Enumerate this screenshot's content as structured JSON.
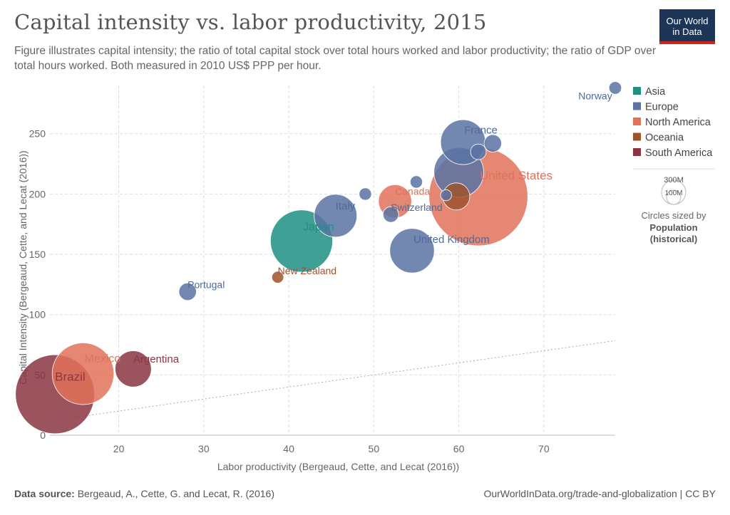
{
  "header": {
    "title": "Capital intensity vs. labor productivity, 2015",
    "subtitle": "Figure illustrates capital intensity; the ratio of total capital stock over total hours worked and labor productivity; the ratio of GDP over total hours worked. Both measured in 2010 US$ PPP per hour.",
    "logo_line1": "Our World",
    "logo_line2": "in Data"
  },
  "footer": {
    "source_label": "Data source:",
    "source_text": "Bergeaud, A., Cette, G. and Lecat, R. (2016)",
    "right_text": "OurWorldInData.org/trade-and-globalization | CC BY"
  },
  "legend": {
    "size_top": "300M",
    "size_bottom": "100M",
    "size_caption1": "Circles sized by",
    "size_caption2": "Population",
    "size_caption3": "(historical)"
  },
  "chart_data": {
    "type": "scatter",
    "xlabel": "Labor productivity (Bergeaud, Cette, and Lecat (2016))",
    "ylabel": "Capital Intensity (Bergeaud, Cette, and Lecat (2016))",
    "xlim": [
      11.9,
      78.4
    ],
    "ylim": [
      0,
      290
    ],
    "xticks": [
      20,
      30,
      40,
      50,
      60,
      70
    ],
    "yticks": [
      0,
      50,
      100,
      150,
      200,
      250
    ],
    "grid": true,
    "legend_position": "right",
    "groups": [
      {
        "name": "Asia",
        "color": "#1f8f84"
      },
      {
        "name": "Europe",
        "color": "#5a73a3"
      },
      {
        "name": "North America",
        "color": "#e0725a"
      },
      {
        "name": "Oceania",
        "color": "#9e532c"
      },
      {
        "name": "South America",
        "color": "#8a3542"
      }
    ],
    "points": [
      {
        "label": "Norway",
        "x": 78.4,
        "y": 288,
        "group": "Europe",
        "pop": 5.2
      },
      {
        "label": "France",
        "x": 60.5,
        "y": 243,
        "group": "Europe",
        "pop": 66
      },
      {
        "label": "",
        "x": 64.0,
        "y": 242,
        "group": "Europe",
        "pop": 10
      },
      {
        "label": "",
        "x": 62.3,
        "y": 235,
        "group": "Europe",
        "pop": 8
      },
      {
        "label": "",
        "x": 60.0,
        "y": 218,
        "group": "Europe",
        "pop": 81
      },
      {
        "label": "",
        "x": 55.0,
        "y": 210,
        "group": "Europe",
        "pop": 5
      },
      {
        "label": "",
        "x": 49.0,
        "y": 200,
        "group": "Europe",
        "pop": 5
      },
      {
        "label": "",
        "x": 58.5,
        "y": 199,
        "group": "Europe",
        "pop": 4
      },
      {
        "label": "United States",
        "x": 62.3,
        "y": 198,
        "group": "North America",
        "pop": 320
      },
      {
        "label": "",
        "x": 59.7,
        "y": 198,
        "group": "Oceania",
        "pop": 24
      },
      {
        "label": "Canada",
        "x": 52.5,
        "y": 194,
        "group": "North America",
        "pop": 36
      },
      {
        "label": "Switzerland",
        "x": 52.0,
        "y": 183,
        "group": "Europe",
        "pop": 8
      },
      {
        "label": "Italy",
        "x": 45.5,
        "y": 182,
        "group": "Europe",
        "pop": 60
      },
      {
        "label": "Japan",
        "x": 41.5,
        "y": 161,
        "group": "Asia",
        "pop": 127
      },
      {
        "label": "United Kingdom",
        "x": 54.5,
        "y": 153,
        "group": "Europe",
        "pop": 65
      },
      {
        "label": "New Zealand",
        "x": 38.7,
        "y": 131,
        "group": "Oceania",
        "pop": 4.6
      },
      {
        "label": "Portugal",
        "x": 28.1,
        "y": 119,
        "group": "Europe",
        "pop": 10
      },
      {
        "label": "Argentina",
        "x": 21.7,
        "y": 55,
        "group": "South America",
        "pop": 43
      },
      {
        "label": "Mexico",
        "x": 15.8,
        "y": 51,
        "group": "North America",
        "pop": 125
      },
      {
        "label": "Brazil",
        "x": 12.5,
        "y": 34,
        "group": "South America",
        "pop": 205
      }
    ]
  }
}
